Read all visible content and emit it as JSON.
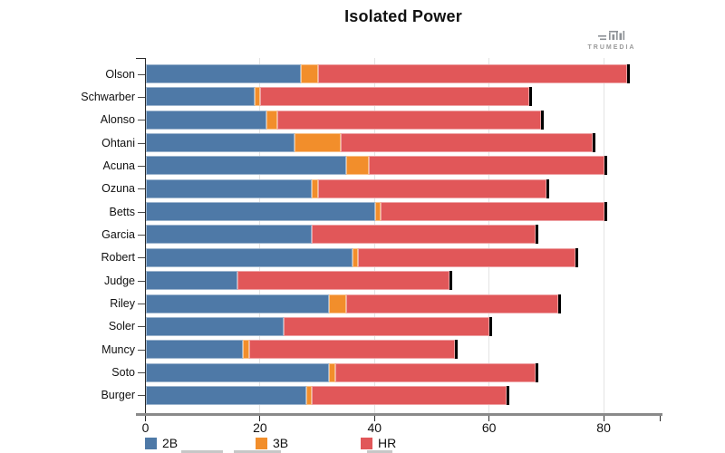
{
  "title": "Isolated Power",
  "watermark": {
    "brand": "TRUMEDIA"
  },
  "x_axis": {
    "tick_values": [
      0,
      20,
      40,
      60,
      80
    ],
    "end_value": 90
  },
  "legend": {
    "items": [
      {
        "label": "2B",
        "color": "#4e79a7"
      },
      {
        "label": "3B",
        "color": "#f28e2b"
      },
      {
        "label": "HR",
        "color": "#e15759"
      }
    ]
  },
  "chart_data": {
    "type": "bar",
    "orientation": "horizontal",
    "stacked": true,
    "title": "Isolated Power",
    "categories": [
      "Olson",
      "Schwarber",
      "Alonso",
      "Ohtani",
      "Acuna",
      "Ozuna",
      "Betts",
      "Garcia",
      "Robert",
      "Judge",
      "Riley",
      "Soler",
      "Muncy",
      "Soto",
      "Burger"
    ],
    "series": [
      {
        "name": "2B",
        "color": "#4e79a7",
        "values": [
          27,
          19,
          21,
          26,
          35,
          29,
          40,
          29,
          36,
          16,
          32,
          24,
          17,
          32,
          28
        ]
      },
      {
        "name": "3B",
        "color": "#f28e2b",
        "values": [
          3,
          1,
          2,
          8,
          4,
          1,
          1,
          0,
          1,
          0,
          3,
          0,
          1,
          1,
          1
        ]
      },
      {
        "name": "HR",
        "color": "#e15759",
        "values": [
          54,
          47,
          46,
          44,
          41,
          40,
          39,
          39,
          38,
          37,
          37,
          36,
          36,
          35,
          34
        ]
      }
    ],
    "totals": [
      84,
      67,
      69,
      78,
      80,
      70,
      80,
      68,
      75,
      53,
      72,
      60,
      54,
      68,
      63
    ],
    "xlim": [
      0,
      90
    ],
    "x_ticks": [
      0,
      20,
      40,
      60,
      80
    ],
    "grid": true,
    "legend_position": "bottom",
    "end_marker_color": "#000000"
  }
}
